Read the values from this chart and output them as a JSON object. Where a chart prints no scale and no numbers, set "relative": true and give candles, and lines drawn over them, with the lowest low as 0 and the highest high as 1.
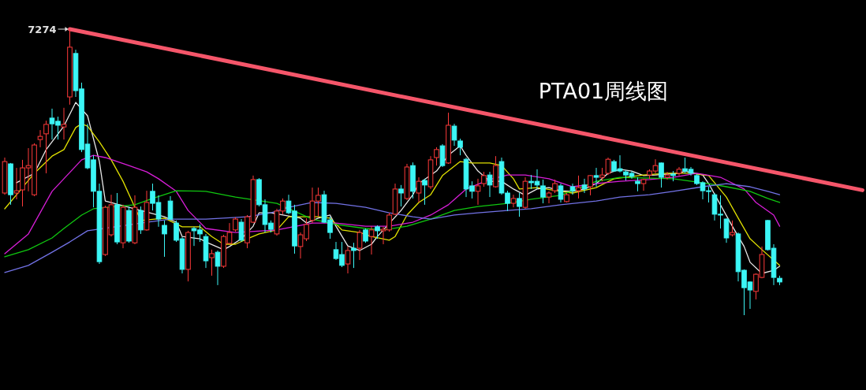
{
  "chart_data": {
    "type": "candlestick",
    "title": "PTA01周线图",
    "relative": true,
    "categories": [
      null,
      null,
      null,
      null,
      null,
      null,
      null,
      null,
      null,
      null,
      null,
      null,
      null,
      null,
      null,
      null,
      null,
      null,
      null,
      null,
      null,
      null,
      null,
      null,
      null,
      null,
      null,
      null,
      null,
      null,
      null,
      null,
      null,
      null,
      null,
      null,
      null,
      null,
      null,
      null,
      null,
      null,
      null,
      null,
      null,
      null,
      null,
      null,
      null,
      null,
      null,
      null,
      null,
      null,
      null,
      null,
      null,
      null,
      null,
      null,
      null,
      null,
      null,
      null,
      null,
      null,
      null,
      null,
      null,
      null,
      null,
      null,
      null,
      null,
      null,
      null,
      null,
      null,
      null,
      null,
      null,
      null,
      null,
      null,
      null,
      null,
      null,
      null,
      null,
      null,
      null,
      null,
      null,
      null,
      null,
      null,
      null,
      null,
      null,
      null,
      null,
      null,
      null,
      null,
      null,
      null,
      null,
      null,
      null,
      null,
      null,
      null,
      null,
      null,
      null,
      null,
      null,
      null,
      null,
      null,
      null,
      null,
      null,
      null,
      null,
      null,
      null,
      null,
      null,
      null,
      null,
      null,
      null,
      null,
      null,
      null,
      null,
      null,
      null,
      null,
      null,
      null,
      null,
      null,
      null,
      null
    ],
    "ohlc": [
      [
        0.427,
        0.551,
        0.421,
        0.537
      ],
      [
        0.529,
        0.532,
        0.386,
        0.421
      ],
      [
        0.427,
        0.515,
        0.405,
        0.435
      ],
      [
        0.438,
        0.543,
        0.38,
        0.515
      ],
      [
        0.515,
        0.584,
        0.433,
        0.523
      ],
      [
        0.421,
        0.601,
        0.416,
        0.595
      ],
      [
        0.614,
        0.647,
        0.587,
        0.625
      ],
      [
        0.634,
        0.68,
        0.496,
        0.667
      ],
      [
        0.689,
        0.722,
        0.614,
        0.669
      ],
      [
        0.678,
        0.694,
        0.614,
        0.664
      ],
      [
        0.658,
        0.725,
        0.614,
        0.667
      ],
      [
        0.763,
        1,
        0.736,
        0.937
      ],
      [
        0.915,
        0.928,
        0.763,
        0.785
      ],
      [
        0.791,
        0.813,
        0.57,
        0.579
      ],
      [
        0.598,
        0.669,
        0.51,
        0.515
      ],
      [
        0.543,
        0.559,
        0.377,
        0.433
      ],
      [
        0.433,
        0.46,
        0.179,
        0.187
      ],
      [
        0.212,
        0.383,
        0.207,
        0.377
      ],
      [
        0.281,
        0.421,
        0.275,
        0.386
      ],
      [
        0.386,
        0.427,
        0.248,
        0.256
      ],
      [
        0.253,
        0.386,
        0.234,
        0.377
      ],
      [
        0.366,
        0.38,
        0.253,
        0.259
      ],
      [
        0.253,
        0.419,
        0.248,
        0.377
      ],
      [
        0.366,
        0.38,
        0.284,
        0.298
      ],
      [
        0.298,
        0.435,
        0.295,
        0.394
      ],
      [
        0.433,
        0.46,
        0.366,
        0.391
      ],
      [
        0.394,
        0.419,
        0.309,
        0.336
      ],
      [
        0.314,
        0.331,
        0.204,
        0.284
      ],
      [
        0.399,
        0.416,
        0.331,
        0.336
      ],
      [
        0.322,
        0.331,
        0.256,
        0.262
      ],
      [
        0.267,
        0.273,
        0.146,
        0.16
      ],
      [
        0.16,
        0.295,
        0.118,
        0.289
      ],
      [
        0.303,
        0.309,
        0.242,
        0.295
      ],
      [
        0.298,
        0.317,
        0.256,
        0.284
      ],
      [
        0.275,
        0.284,
        0.165,
        0.19
      ],
      [
        0.201,
        0.229,
        0.138,
        0.215
      ],
      [
        0.22,
        0.226,
        0.105,
        0.171
      ],
      [
        0.171,
        0.281,
        0.165,
        0.275
      ],
      [
        0.251,
        0.322,
        0.248,
        0.289
      ],
      [
        0.298,
        0.342,
        0.292,
        0.336
      ],
      [
        0.325,
        0.336,
        0.256,
        0.262
      ],
      [
        0.253,
        0.35,
        0.234,
        0.344
      ],
      [
        0.325,
        0.488,
        0.322,
        0.474
      ],
      [
        0.474,
        0.479,
        0.38,
        0.386
      ],
      [
        0.386,
        0.405,
        0.289,
        0.317
      ],
      [
        0.322,
        0.331,
        0.289,
        0.3
      ],
      [
        0.284,
        0.372,
        0.278,
        0.364
      ],
      [
        0.364,
        0.408,
        0.353,
        0.399
      ],
      [
        0.399,
        0.421,
        0.353,
        0.358
      ],
      [
        0.364,
        0.386,
        0.215,
        0.242
      ],
      [
        0.24,
        0.289,
        0.198,
        0.281
      ],
      [
        0.267,
        0.339,
        0.259,
        0.317
      ],
      [
        0.331,
        0.446,
        0.322,
        0.399
      ],
      [
        0.399,
        0.446,
        0.344,
        0.419
      ],
      [
        0.421,
        0.435,
        0.322,
        0.325
      ],
      [
        0.333,
        0.344,
        0.267,
        0.289
      ],
      [
        0.229,
        0.256,
        0.193,
        0.198
      ],
      [
        0.212,
        0.256,
        0.168,
        0.174
      ],
      [
        0.179,
        0.24,
        0.146,
        0.226
      ],
      [
        0.234,
        0.253,
        0.165,
        0.226
      ],
      [
        0.234,
        0.298,
        0.193,
        0.289
      ],
      [
        0.298,
        0.303,
        0.253,
        0.259
      ],
      [
        0.275,
        0.311,
        0.212,
        0.298
      ],
      [
        0.309,
        0.314,
        0.267,
        0.295
      ],
      [
        0.295,
        0.309,
        0.248,
        0.3
      ],
      [
        0.298,
        0.358,
        0.292,
        0.35
      ],
      [
        0.353,
        0.46,
        0.35,
        0.441
      ],
      [
        0.441,
        0.455,
        0.38,
        0.427
      ],
      [
        0.408,
        0.529,
        0.402,
        0.518
      ],
      [
        0.523,
        0.534,
        0.408,
        0.433
      ],
      [
        0.427,
        0.482,
        0.394,
        0.468
      ],
      [
        0.471,
        0.477,
        0.386,
        0.455
      ],
      [
        0.449,
        0.556,
        0.441,
        0.543
      ],
      [
        0.551,
        0.587,
        0.523,
        0.579
      ],
      [
        0.592,
        0.598,
        0.518,
        0.523
      ],
      [
        0.532,
        0.708,
        0.529,
        0.664
      ],
      [
        0.661,
        0.669,
        0.592,
        0.612
      ],
      [
        0.609,
        0.617,
        0.559,
        0.587
      ],
      [
        0.545,
        0.551,
        0.413,
        0.441
      ],
      [
        0.452,
        0.468,
        0.408,
        0.433
      ],
      [
        0.433,
        0.477,
        0.386,
        0.452
      ],
      [
        0.46,
        0.501,
        0.449,
        0.488
      ],
      [
        0.49,
        0.501,
        0.413,
        0.455
      ],
      [
        0.449,
        0.556,
        0.446,
        0.523
      ],
      [
        0.537,
        0.551,
        0.421,
        0.427
      ],
      [
        0.427,
        0.435,
        0.364,
        0.391
      ],
      [
        0.391,
        0.421,
        0.377,
        0.408
      ],
      [
        0.408,
        0.427,
        0.344,
        0.38
      ],
      [
        0.377,
        0.482,
        0.372,
        0.468
      ],
      [
        0.468,
        0.49,
        0.441,
        0.463
      ],
      [
        0.468,
        0.51,
        0.441,
        0.455
      ],
      [
        0.452,
        0.474,
        0.391,
        0.413
      ],
      [
        0.413,
        0.433,
        0.391,
        0.427
      ],
      [
        0.435,
        0.474,
        0.427,
        0.46
      ],
      [
        0.452,
        0.46,
        0.394,
        0.405
      ],
      [
        0.397,
        0.427,
        0.394,
        0.421
      ],
      [
        0.449,
        0.46,
        0.421,
        0.435
      ],
      [
        0.435,
        0.488,
        0.408,
        0.446
      ],
      [
        0.455,
        0.477,
        0.427,
        0.441
      ],
      [
        0.449,
        0.49,
        0.419,
        0.488
      ],
      [
        0.488,
        0.515,
        0.449,
        0.482
      ],
      [
        0.482,
        0.515,
        0.468,
        0.49
      ],
      [
        0.496,
        0.551,
        0.49,
        0.545
      ],
      [
        0.537,
        0.543,
        0.501,
        0.504
      ],
      [
        0.512,
        0.559,
        0.499,
        0.504
      ],
      [
        0.501,
        0.507,
        0.471,
        0.49
      ],
      [
        0.496,
        0.504,
        0.477,
        0.485
      ],
      [
        0.468,
        0.482,
        0.433,
        0.46
      ],
      [
        0.46,
        0.477,
        0.435,
        0.474
      ],
      [
        0.49,
        0.51,
        0.477,
        0.504
      ],
      [
        0.504,
        0.545,
        0.496,
        0.523
      ],
      [
        0.532,
        0.534,
        0.446,
        0.482
      ],
      [
        0.482,
        0.501,
        0.474,
        0.49
      ],
      [
        0.493,
        0.504,
        0.468,
        0.488
      ],
      [
        0.496,
        0.518,
        0.488,
        0.51
      ],
      [
        0.512,
        0.551,
        0.496,
        0.504
      ],
      [
        0.51,
        0.518,
        0.488,
        0.496
      ],
      [
        0.488,
        0.493,
        0.455,
        0.46
      ],
      [
        0.463,
        0.468,
        0.405,
        0.435
      ],
      [
        0.435,
        0.449,
        0.394,
        0.433
      ],
      [
        0.421,
        0.427,
        0.331,
        0.353
      ],
      [
        0.353,
        0.419,
        0.303,
        0.35
      ],
      [
        0.336,
        0.339,
        0.253,
        0.27
      ],
      [
        0.281,
        0.331,
        0.275,
        0.289
      ],
      [
        0.284,
        0.289,
        0.118,
        0.152
      ],
      [
        0.157,
        0.16,
        0,
        0.096
      ],
      [
        0.116,
        0.118,
        0.022,
        0.088
      ],
      [
        0.083,
        0.146,
        0.055,
        0.143
      ],
      [
        0.132,
        0.24,
        0.129,
        0.212
      ],
      [
        0.331,
        0.333,
        0.226,
        0.229
      ],
      [
        0.234,
        0.248,
        0.105,
        0.132
      ],
      [
        0.129,
        0.138,
        0.105,
        0.116
      ],
      null,
      null,
      null,
      null,
      null,
      null,
      null,
      null,
      null,
      null,
      null,
      null,
      null,
      null
    ],
    "series": [
      {
        "type": "line",
        "color": "#e8e8e8",
        "values": [
          null,
          null,
          0.463,
          null,
          null,
          0.496,
          null,
          0.579,
          null,
          null,
          0.661,
          null,
          0.744,
          null,
          0.697,
          null,
          0.537,
          0.399,
          null,
          null,
          null,
          null,
          null,
          null,
          null,
          null,
          null,
          0.344,
          null,
          0.325,
          0.275,
          null,
          null,
          0.267,
          0.256,
          null,
          null,
          0.229,
          0.24,
          null,
          0.267,
          null,
          0.311,
          0.358,
          null,
          0.358,
          null,
          null,
          null,
          null,
          0.339,
          0.322,
          null,
          0.339,
          null,
          0.35,
          0.311,
          null,
          0.242,
          null,
          0.226,
          null,
          0.248,
          0.275,
          null,
          null,
          null,
          0.366,
          null,
          0.421,
          0.46,
          null,
          null,
          0.504,
          null,
          0.559,
          null,
          0.592,
          0.559,
          null,
          0.504,
          null,
          0.468,
          null,
          0.468,
          null,
          0.441,
          null,
          0.419,
          null,
          0.441,
          null,
          0.446,
          null,
          0.435,
          null,
          0.433,
          null,
          0.441,
          null,
          0.46,
          null,
          0.496,
          null,
          0.51,
          null,
          0.504,
          null,
          0.488,
          null,
          0.49,
          null,
          null,
          null,
          0.496,
          0.504,
          null,
          null,
          0.49,
          0.46,
          null,
          null,
          null,
          0.311,
          null,
          0.24,
          0.185,
          null,
          0.146,
          null,
          0.157,
          0.171,
          null,
          null,
          null,
          null,
          null,
          null,
          null,
          null,
          null,
          null,
          null,
          null,
          null,
          null
        ]
      },
      {
        "type": "line",
        "color": "#e0e000",
        "values": [
          0.372,
          null,
          0.421,
          null,
          null,
          0.496,
          null,
          null,
          0.556,
          null,
          0.579,
          null,
          0.656,
          0.669,
          0.661,
          null,
          0.606,
          null,
          0.543,
          null,
          0.468,
          null,
          0.377,
          0.331,
          null,
          null,
          null,
          0.339,
          null,
          null,
          0.309,
          null,
          null,
          0.309,
          null,
          0.275,
          null,
          0.248,
          null,
          0.248,
          null,
          0.267,
          null,
          0.284,
          null,
          null,
          0.298,
          null,
          0.344,
          null,
          0.344,
          null,
          null,
          0.344,
          null,
          0.339,
          null,
          0.298,
          null,
          null,
          0.289,
          null,
          0.275,
          null,
          null,
          0.262,
          0.275,
          null,
          0.35,
          null,
          0.394,
          null,
          0.421,
          null,
          0.488,
          null,
          null,
          0.537,
          null,
          0.532,
          null,
          null,
          0.532,
          null,
          0.523,
          null,
          0.477,
          0.441,
          null,
          null,
          0.446,
          null,
          null,
          null,
          0.433,
          null,
          0.427,
          null,
          null,
          null,
          0.446,
          null,
          null,
          0.477,
          null,
          null,
          null,
          null,
          0.49,
          null,
          null,
          null,
          0.496,
          null,
          null,
          null,
          0.496,
          null,
          null,
          0.488,
          null,
          null,
          0.413,
          null,
          0.339,
          null,
          0.267,
          null,
          0.229,
          null,
          null,
          0.174,
          null,
          null,
          null,
          null,
          null,
          null,
          null,
          null,
          null,
          null,
          null,
          null,
          null,
          null
        ]
      },
      {
        "type": "line",
        "color": "#d81ed8",
        "values": [
          0.215,
          null,
          null,
          null,
          0.284,
          null,
          null,
          null,
          0.433,
          null,
          0.477,
          null,
          null,
          0.543,
          null,
          0.559,
          null,
          0.551,
          null,
          null,
          null,
          0.523,
          null,
          null,
          0.501,
          null,
          0.477,
          null,
          null,
          0.433,
          null,
          0.366,
          null,
          null,
          0.303,
          null,
          null,
          null,
          null,
          0.289,
          null,
          null,
          null,
          null,
          null,
          null,
          0.298,
          null,
          null,
          null,
          null,
          null,
          0.322,
          null,
          null,
          null,
          0.322,
          null,
          null,
          null,
          null,
          0.311,
          null,
          null,
          null,
          0.311,
          null,
          null,
          null,
          0.325,
          null,
          null,
          0.35,
          null,
          null,
          0.386,
          null,
          null,
          0.441,
          null,
          null,
          null,
          0.474,
          null,
          null,
          0.49,
          null,
          null,
          0.49,
          null,
          null,
          null,
          0.477,
          null,
          null,
          null,
          0.449,
          null,
          null,
          null,
          0.46,
          null,
          null,
          null,
          0.468,
          null,
          null,
          null,
          null,
          0.474,
          null,
          null,
          null,
          0.482,
          null,
          null,
          null,
          0.496,
          null,
          null,
          null,
          0.482,
          null,
          null,
          null,
          0.441,
          null,
          0.394,
          null,
          null,
          0.35,
          0.311,
          null,
          null,
          null,
          null,
          null,
          null,
          null,
          null,
          null,
          null,
          null,
          null,
          null,
          null
        ]
      },
      {
        "type": "line",
        "color": "#10c810",
        "values": [
          0.204,
          null,
          null,
          null,
          0.229,
          null,
          null,
          null,
          0.27,
          null,
          0.303,
          null,
          null,
          0.35,
          null,
          0.372,
          null,
          null,
          null,
          null,
          null,
          null,
          0.386,
          null,
          null,
          0.408,
          null,
          null,
          null,
          0.435,
          null,
          null,
          null,
          null,
          0.433,
          null,
          null,
          null,
          null,
          0.413,
          null,
          null,
          null,
          null,
          null,
          null,
          0.391,
          null,
          0.372,
          null,
          null,
          null,
          0.336,
          null,
          null,
          null,
          0.317,
          null,
          null,
          null,
          null,
          0.303,
          null,
          null,
          0.298,
          null,
          null,
          null,
          0.311,
          null,
          null,
          null,
          0.336,
          null,
          null,
          null,
          0.366,
          null,
          null,
          null,
          0.38,
          null,
          null,
          null,
          null,
          0.391,
          null,
          null,
          null,
          0.405,
          null,
          null,
          null,
          null,
          0.419,
          null,
          null,
          null,
          null,
          null,
          0.468,
          null,
          null,
          null,
          0.482,
          null,
          null,
          null,
          null,
          null,
          null,
          null,
          null,
          0.477,
          null,
          null,
          null,
          null,
          null,
          0.46,
          null,
          null,
          0.449,
          null,
          null,
          null,
          0.433,
          null,
          null,
          0.408,
          null,
          0.394,
          null,
          null,
          null,
          null,
          null,
          null,
          null,
          null,
          null,
          null,
          null,
          null,
          null,
          null
        ]
      },
      {
        "type": "line",
        "color": "#7272e6",
        "values": [
          0.149,
          null,
          null,
          null,
          0.174,
          null,
          null,
          null,
          0.22,
          null,
          null,
          0.256,
          null,
          null,
          0.295,
          null,
          null,
          null,
          null,
          null,
          null,
          null,
          null,
          null,
          0.325,
          null,
          null,
          null,
          0.336,
          null,
          null,
          null,
          null,
          null,
          0.336,
          null,
          null,
          null,
          null,
          null,
          null,
          0.344,
          null,
          null,
          null,
          0.358,
          null,
          null,
          0.377,
          null,
          null,
          null,
          0.394,
          null,
          null,
          null,
          0.391,
          null,
          null,
          null,
          null,
          0.377,
          null,
          null,
          null,
          0.358,
          null,
          null,
          null,
          0.344,
          null,
          null,
          0.336,
          null,
          null,
          null,
          0.35,
          null,
          null,
          null,
          0.358,
          null,
          null,
          null,
          null,
          0.366,
          null,
          null,
          null,
          0.372,
          null,
          null,
          null,
          null,
          0.386,
          null,
          null,
          null,
          null,
          null,
          0.399,
          null,
          null,
          null,
          0.413,
          null,
          null,
          null,
          null,
          0.421,
          null,
          null,
          null,
          0.433,
          null,
          null,
          null,
          null,
          0.449,
          null,
          null,
          null,
          0.46,
          null,
          null,
          null,
          0.449,
          null,
          null,
          0.433,
          null,
          0.421,
          null,
          null,
          null,
          null,
          null,
          null,
          null,
          null,
          null,
          null,
          null,
          null,
          null,
          null
        ]
      },
      {
        "type": "line",
        "color": "#f5566a",
        "values": [
          null,
          null,
          null,
          null,
          null,
          null,
          null,
          null,
          null,
          null,
          null,
          1,
          null,
          null,
          null,
          null,
          null,
          null,
          null,
          null,
          null,
          null,
          null,
          null,
          null,
          null,
          null,
          null,
          null,
          null,
          null,
          null,
          null,
          null,
          null,
          null,
          null,
          null,
          null,
          null,
          null,
          null,
          null,
          null,
          null,
          null,
          null,
          null,
          null,
          null,
          null,
          null,
          null,
          null,
          null,
          null,
          null,
          null,
          null,
          null,
          null,
          null,
          null,
          null,
          null,
          null,
          null,
          null,
          null,
          null,
          null,
          null,
          null,
          null,
          null,
          null,
          null,
          null,
          null,
          null,
          null,
          null,
          null,
          null,
          null,
          null,
          null,
          null,
          null,
          null,
          null,
          null,
          null,
          null,
          null,
          null,
          null,
          null,
          null,
          null,
          null,
          null,
          null,
          null,
          null,
          null,
          null,
          null,
          null,
          null,
          null,
          null,
          null,
          null,
          null,
          null,
          null,
          null,
          null,
          null,
          null,
          null,
          null,
          null,
          null,
          null,
          null,
          null,
          null,
          null,
          null,
          null,
          null,
          null,
          null,
          null,
          null,
          null,
          null,
          null,
          null,
          null,
          null,
          null,
          null,
          0.437
        ]
      }
    ],
    "annotations": [
      "7274"
    ]
  }
}
